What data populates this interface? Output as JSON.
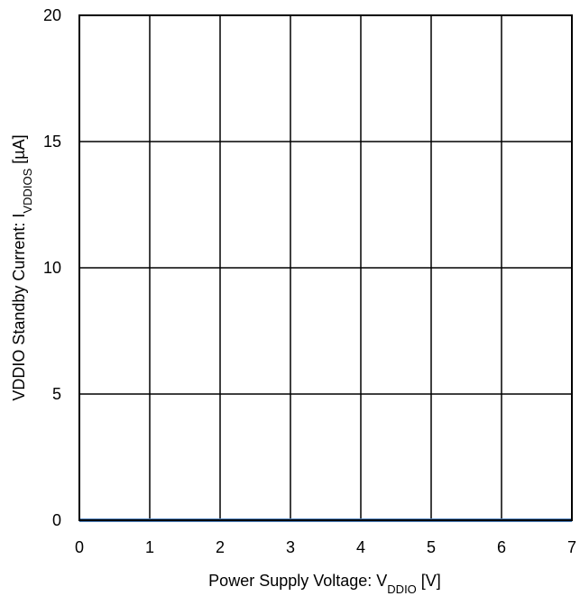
{
  "chart_data": {
    "type": "line",
    "title": "",
    "xlabel": {
      "main": "Power Supply Voltage: V",
      "sub": "DDIO",
      "tail": " [V]"
    },
    "ylabel": {
      "main": "VDDIO Standby Current: I",
      "sub": "VDDIOS",
      "tail": " [µA]"
    },
    "xlim": [
      0,
      7
    ],
    "ylim": [
      0,
      20
    ],
    "xticks": [
      "0",
      "1",
      "2",
      "3",
      "4",
      "5",
      "6",
      "7"
    ],
    "yticks": [
      "0",
      "5",
      "10",
      "15",
      "20"
    ],
    "grid": true,
    "series": [
      {
        "color": "#4f81bd",
        "x": [
          0,
          7
        ],
        "y": [
          0,
          0
        ]
      }
    ]
  }
}
